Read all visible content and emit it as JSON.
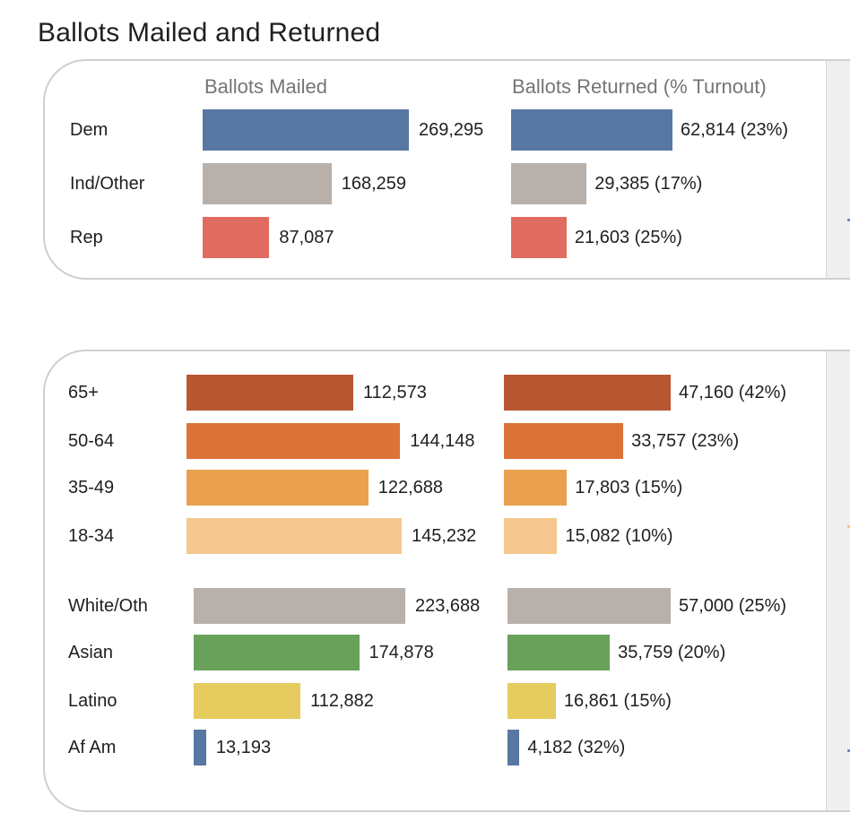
{
  "title": "Ballots Mailed and Returned",
  "chart_data": [
    {
      "type": "bar",
      "orientation": "horizontal",
      "group": "party",
      "column_titles": [
        "Ballots Mailed",
        "Ballots Returned (% Turnout)"
      ],
      "categories": [
        "Dem",
        "Ind/Other",
        "Rep"
      ],
      "colors": [
        "#5878a3",
        "#b8b0ab",
        "#e06c61"
      ],
      "series": [
        {
          "name": "Ballots Mailed",
          "values": [
            269295,
            168259,
            87087
          ],
          "labels": [
            "269,295",
            "168,259",
            "87,087"
          ]
        },
        {
          "name": "Ballots Returned (% Turnout)",
          "values": [
            62814,
            29385,
            21603
          ],
          "labels": [
            "62,814 (23%)",
            "29,385 (17%)",
            "21,603 (25%)"
          ]
        }
      ]
    },
    {
      "type": "bar",
      "orientation": "horizontal",
      "group": "age",
      "categories": [
        "65+",
        "50-64",
        "35-49",
        "18-34"
      ],
      "colors": [
        "#b85732",
        "#dc7336",
        "#e9a04f",
        "#f5c78e"
      ],
      "series": [
        {
          "name": "Ballots Mailed",
          "values": [
            112573,
            144148,
            122688,
            145232
          ],
          "labels": [
            "112,573",
            "144,148",
            "122,688",
            "145,232"
          ]
        },
        {
          "name": "Ballots Returned (% Turnout)",
          "values": [
            47160,
            33757,
            17803,
            15082
          ],
          "labels": [
            "47,160 (42%)",
            "33,757 (23%)",
            "17,803 (15%)",
            "15,082 (10%)"
          ]
        }
      ]
    },
    {
      "type": "bar",
      "orientation": "horizontal",
      "group": "ethnicity",
      "categories": [
        "White/Oth",
        "Asian",
        "Latino",
        "Af Am"
      ],
      "colors": [
        "#b8b0ab",
        "#69a15b",
        "#e6cb5e",
        "#5878a3"
      ],
      "series": [
        {
          "name": "Ballots Mailed",
          "values": [
            223688,
            174878,
            112882,
            13193
          ],
          "labels": [
            "223,688",
            "174,878",
            "112,882",
            "13,193"
          ]
        },
        {
          "name": "Ballots Returned (% Turnout)",
          "values": [
            57000,
            35759,
            16861,
            4182
          ],
          "labels": [
            "57,000 (25%)",
            "35,759 (20%)",
            "16,861 (15%)",
            "4,182 (32%)"
          ]
        }
      ]
    }
  ],
  "strip_dot_colors": [
    "#5878a3",
    "#e9c46a",
    "#5878a3"
  ]
}
